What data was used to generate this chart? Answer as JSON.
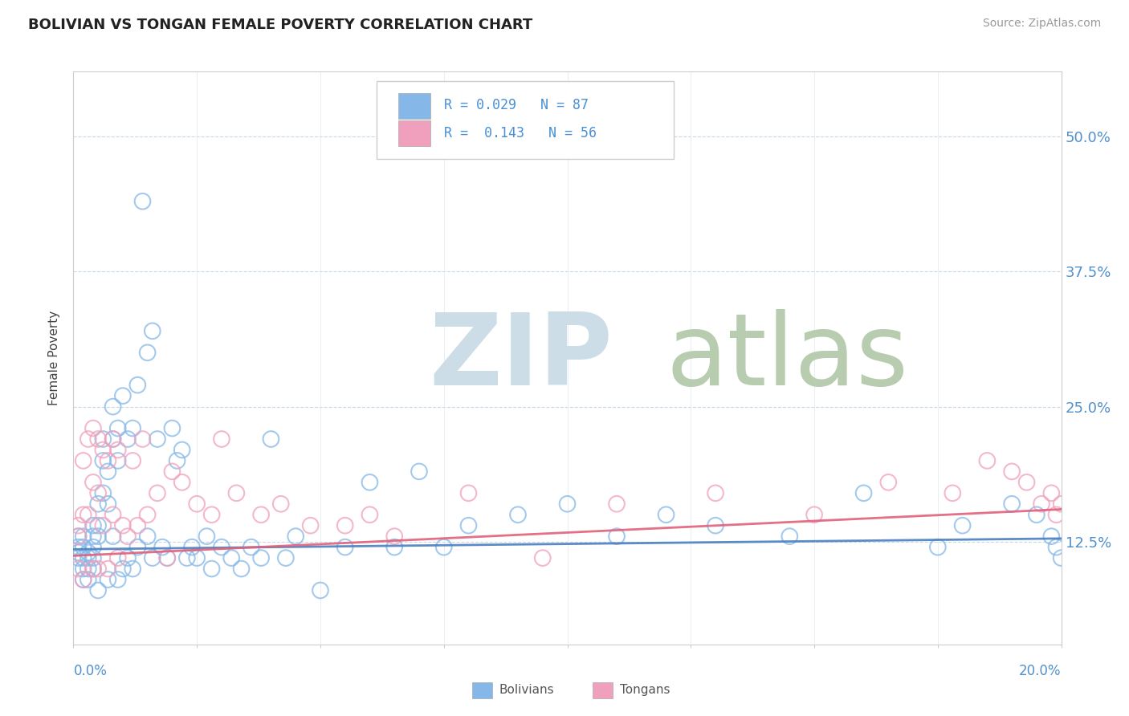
{
  "title": "BOLIVIAN VS TONGAN FEMALE POVERTY CORRELATION CHART",
  "source_text": "Source: ZipAtlas.com",
  "ylabel": "Female Poverty",
  "ytick_labels": [
    "12.5%",
    "25.0%",
    "37.5%",
    "50.0%"
  ],
  "ytick_values": [
    0.125,
    0.25,
    0.375,
    0.5
  ],
  "xlim": [
    0.0,
    0.2
  ],
  "ylim": [
    0.03,
    0.56
  ],
  "blue_color": "#85b8e8",
  "pink_color": "#f0a0bc",
  "blue_line_color": "#4a7fc0",
  "pink_line_color": "#e0607a",
  "title_color": "#222222",
  "axis_label_color": "#5090cc",
  "watermark_zip_color": "#ccdde8",
  "watermark_atlas_color": "#b8ccb0",
  "legend_text_color": "#4a8fd4",
  "background_color": "#ffffff",
  "grid_color": "#c8d8e8",
  "grid_linestyle": "--",
  "bolivians_x": [
    0.001,
    0.001,
    0.001,
    0.001,
    0.002,
    0.002,
    0.002,
    0.002,
    0.002,
    0.003,
    0.003,
    0.003,
    0.003,
    0.004,
    0.004,
    0.004,
    0.004,
    0.004,
    0.005,
    0.005,
    0.005,
    0.005,
    0.006,
    0.006,
    0.006,
    0.007,
    0.007,
    0.007,
    0.008,
    0.008,
    0.008,
    0.009,
    0.009,
    0.009,
    0.01,
    0.01,
    0.011,
    0.011,
    0.012,
    0.012,
    0.013,
    0.013,
    0.014,
    0.015,
    0.015,
    0.016,
    0.016,
    0.017,
    0.018,
    0.019,
    0.02,
    0.021,
    0.022,
    0.023,
    0.024,
    0.025,
    0.027,
    0.028,
    0.03,
    0.032,
    0.034,
    0.036,
    0.038,
    0.04,
    0.043,
    0.045,
    0.05,
    0.055,
    0.06,
    0.065,
    0.07,
    0.075,
    0.08,
    0.09,
    0.1,
    0.11,
    0.12,
    0.13,
    0.145,
    0.16,
    0.175,
    0.18,
    0.19,
    0.195,
    0.198,
    0.199,
    0.2
  ],
  "bolivians_y": [
    0.13,
    0.12,
    0.115,
    0.11,
    0.13,
    0.12,
    0.11,
    0.1,
    0.09,
    0.115,
    0.11,
    0.1,
    0.09,
    0.14,
    0.13,
    0.12,
    0.11,
    0.1,
    0.16,
    0.14,
    0.13,
    0.08,
    0.22,
    0.2,
    0.17,
    0.19,
    0.16,
    0.09,
    0.25,
    0.22,
    0.13,
    0.23,
    0.2,
    0.09,
    0.26,
    0.1,
    0.22,
    0.11,
    0.23,
    0.1,
    0.27,
    0.12,
    0.44,
    0.3,
    0.13,
    0.32,
    0.11,
    0.22,
    0.12,
    0.11,
    0.23,
    0.2,
    0.21,
    0.11,
    0.12,
    0.11,
    0.13,
    0.1,
    0.12,
    0.11,
    0.1,
    0.12,
    0.11,
    0.22,
    0.11,
    0.13,
    0.08,
    0.12,
    0.18,
    0.12,
    0.19,
    0.12,
    0.14,
    0.15,
    0.16,
    0.13,
    0.15,
    0.14,
    0.13,
    0.17,
    0.12,
    0.14,
    0.16,
    0.15,
    0.13,
    0.12,
    0.11
  ],
  "tongans_x": [
    0.001,
    0.001,
    0.001,
    0.002,
    0.002,
    0.002,
    0.003,
    0.003,
    0.004,
    0.004,
    0.004,
    0.005,
    0.005,
    0.005,
    0.006,
    0.006,
    0.007,
    0.007,
    0.008,
    0.008,
    0.009,
    0.009,
    0.01,
    0.011,
    0.012,
    0.013,
    0.014,
    0.015,
    0.017,
    0.019,
    0.02,
    0.022,
    0.025,
    0.028,
    0.03,
    0.033,
    0.038,
    0.042,
    0.048,
    0.055,
    0.06,
    0.065,
    0.08,
    0.095,
    0.11,
    0.13,
    0.15,
    0.165,
    0.178,
    0.185,
    0.19,
    0.193,
    0.196,
    0.198,
    0.199,
    0.2
  ],
  "tongans_y": [
    0.14,
    0.13,
    0.1,
    0.2,
    0.15,
    0.09,
    0.22,
    0.15,
    0.23,
    0.18,
    0.1,
    0.22,
    0.17,
    0.1,
    0.21,
    0.14,
    0.2,
    0.1,
    0.22,
    0.15,
    0.21,
    0.11,
    0.14,
    0.13,
    0.2,
    0.14,
    0.22,
    0.15,
    0.17,
    0.11,
    0.19,
    0.18,
    0.16,
    0.15,
    0.22,
    0.17,
    0.15,
    0.16,
    0.14,
    0.14,
    0.15,
    0.13,
    0.17,
    0.11,
    0.16,
    0.17,
    0.15,
    0.18,
    0.17,
    0.2,
    0.19,
    0.18,
    0.16,
    0.17,
    0.15,
    0.16
  ]
}
